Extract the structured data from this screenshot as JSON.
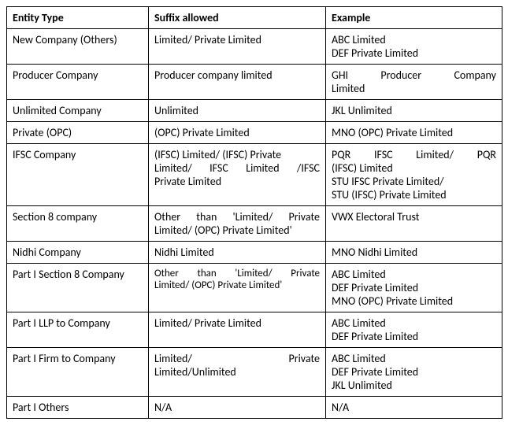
{
  "headers": {
    "c1": "Entity Type",
    "c2": "Suffix allowed",
    "c3": "Example"
  },
  "rows": {
    "r1": {
      "entity": "New Company (Others)",
      "suffix": "Limited/ Private Limited",
      "ex1": "ABC Limited",
      "ex2": "DEF Private Limited"
    },
    "r2": {
      "entity": "Producer Company",
      "suffix": "Producer company limited",
      "ex_a": "GHI",
      "ex_b": "Producer",
      "ex_c": "Company",
      "ex2": "Limited"
    },
    "r3": {
      "entity": "Unlimited Company",
      "suffix": "Unlimited",
      "ex": "JKL Unlimited"
    },
    "r4": {
      "entity": "Private (OPC)",
      "suffix": "(OPC) Private Limited",
      "ex": "MNO (OPC) Private Limited"
    },
    "r5": {
      "entity": "IFSC Company",
      "s1a": "(IFSC) Limited/ (IFSC) Private",
      "s2a": "Limited/",
      "s2b": "IFSC",
      "s2c": "Limited",
      "s2d": "/IFSC",
      "s3": "Private Limited",
      "e1a": "PQR",
      "e1b": "IFSC",
      "e1c": "Limited/",
      "e1d": "PQR",
      "e2": "(IFSC) Limited",
      "e3": "STU IFSC Private Limited/",
      "e4": "STU (IFSC) Private Limited"
    },
    "r6": {
      "entity": "Section 8 company",
      "s1a": "Other",
      "s1b": "than",
      "s1c": "'Limited/",
      "s1d": "Private",
      "s2": "Limited/ (OPC) Private Limited'",
      "ex": "VWX Electoral Trust"
    },
    "r7": {
      "entity": "Nidhi Company",
      "suffix": "Nidhi Limited",
      "ex": "MNO Nidhi Limited"
    },
    "r8": {
      "entity": "Part I Section 8 Company",
      "s1a": "Other",
      "s1b": "than",
      "s1c": "'Limited/",
      "s1d": "Private",
      "s2": "Limited/ (OPC) Private Limited'",
      "ex1": "ABC Limited",
      "ex2": "DEF Private Limited",
      "ex3": "MNO (OPC) Private Limited"
    },
    "r9": {
      "entity": "Part I LLP to Company",
      "suffix": "Limited/ Private Limited",
      "ex1": "ABC Limited",
      "ex2": "DEF Private Limited"
    },
    "r10": {
      "entity": "Part I Firm to Company",
      "s1a": "Limited/",
      "s1b": "Private",
      "s2": "Limited/Unlimited",
      "ex1": "ABC Limited",
      "ex2": "DEF Private Limited",
      "ex3": "JKL Unlimited"
    },
    "r11": {
      "entity": "Part I Others",
      "suffix": "N/A",
      "ex": "N/A"
    }
  }
}
